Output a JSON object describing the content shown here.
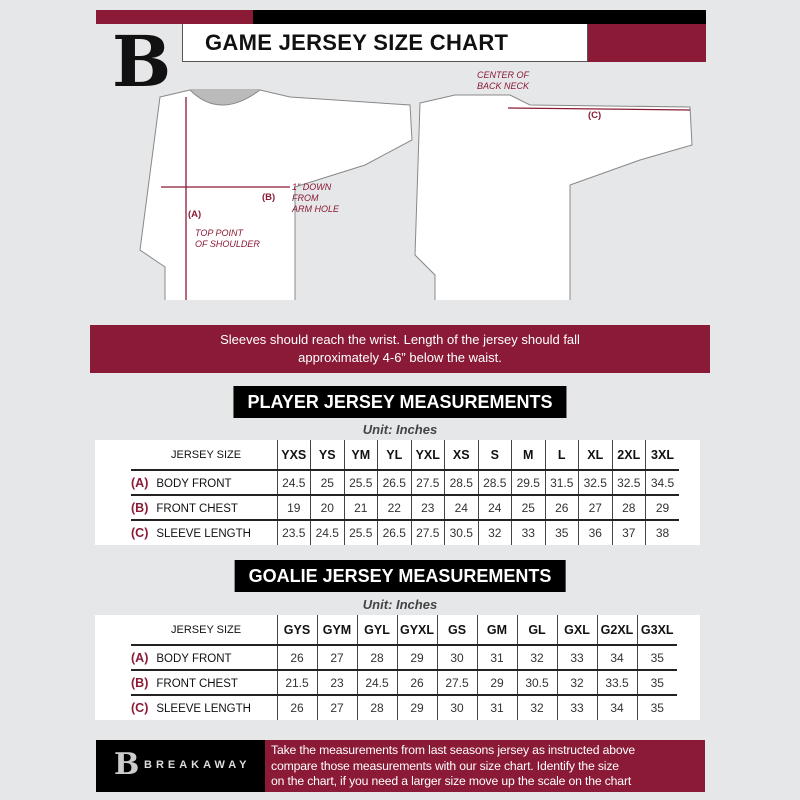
{
  "header": {
    "title": "GAME JERSEY SIZE CHART",
    "logo": "B"
  },
  "diagram": {
    "back_neck_note": [
      "CENTER OF",
      "BACK NECK"
    ],
    "armhole_note": [
      "1\" DOWN",
      "FROM",
      "ARM HOLE"
    ],
    "shoulder_note": [
      "TOP POINT",
      "OF SHOULDER"
    ],
    "label_a": "(A)",
    "label_b": "(B)",
    "label_c": "(C)"
  },
  "instruction_band": [
    "Sleeves should reach the wrist. Length of the jersey should fall",
    "approximately 4-6” below the waist."
  ],
  "player": {
    "heading": "PLAYER JERSEY MEASUREMENTS",
    "unit": "Unit: Inches",
    "size_header": "JERSEY SIZE",
    "sizes": [
      "YXS",
      "YS",
      "YM",
      "YL",
      "YXL",
      "XS",
      "S",
      "M",
      "L",
      "XL",
      "2XL",
      "3XL"
    ],
    "rows": [
      {
        "key": "(A)",
        "label": "BODY FRONT",
        "values": [
          "24.5",
          "25",
          "25.5",
          "26.5",
          "27.5",
          "28.5",
          "28.5",
          "29.5",
          "31.5",
          "32.5",
          "32.5",
          "34.5"
        ]
      },
      {
        "key": "(B)",
        "label": "FRONT CHEST",
        "values": [
          "19",
          "20",
          "21",
          "22",
          "23",
          "24",
          "24",
          "25",
          "26",
          "27",
          "28",
          "29"
        ]
      },
      {
        "key": "(C)",
        "label": "SLEEVE LENGTH",
        "values": [
          "23.5",
          "24.5",
          "25.5",
          "26.5",
          "27.5",
          "30.5",
          "32",
          "33",
          "35",
          "36",
          "37",
          "38"
        ]
      }
    ]
  },
  "goalie": {
    "heading": "GOALIE JERSEY MEASUREMENTS",
    "unit": "Unit: Inches",
    "size_header": "JERSEY SIZE",
    "sizes": [
      "GYS",
      "GYM",
      "GYL",
      "GYXL",
      "GS",
      "GM",
      "GL",
      "GXL",
      "G2XL",
      "G3XL"
    ],
    "rows": [
      {
        "key": "(A)",
        "label": "BODY FRONT",
        "values": [
          "26",
          "27",
          "28",
          "29",
          "30",
          "31",
          "32",
          "33",
          "34",
          "35"
        ]
      },
      {
        "key": "(B)",
        "label": "FRONT CHEST",
        "values": [
          "21.5",
          "23",
          "24.5",
          "26",
          "27.5",
          "29",
          "30.5",
          "32",
          "33.5",
          "35"
        ]
      },
      {
        "key": "(C)",
        "label": "SLEEVE LENGTH",
        "values": [
          "26",
          "27",
          "28",
          "29",
          "30",
          "31",
          "32",
          "33",
          "34",
          "35"
        ]
      }
    ]
  },
  "footer": {
    "brand": "BREAKAWAY",
    "logo": "B",
    "text": [
      "Take the measurements from last seasons jersey as instructed above",
      "compare those measurements  with our size chart. Identify the size",
      "on the chart, if you need a larger size move up the scale on the chart"
    ]
  },
  "colors": {
    "brand": "#8a1a35",
    "background": "#e6e7e9"
  }
}
